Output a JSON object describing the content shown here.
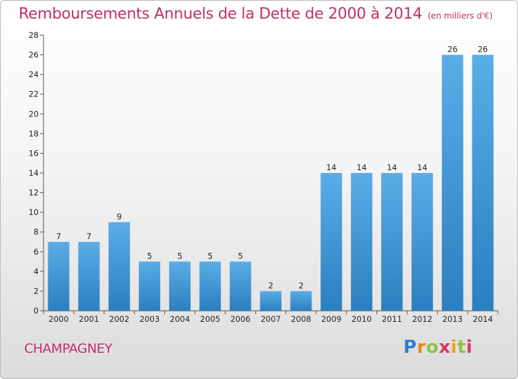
{
  "title": "Remboursements Annuels de la Dette de 2000 à 2014",
  "subtitle": "(en milliers d'€)",
  "commune": "CHAMPAGNEY",
  "logo": {
    "text": "Proxiti",
    "letters": [
      "P",
      "r",
      "o",
      "x",
      "i",
      "t",
      "i"
    ]
  },
  "colors": {
    "bar_top": "#5aade6",
    "bar_bottom": "#2a7fc0",
    "title": "#c0306a"
  },
  "chart_data": {
    "type": "bar",
    "title": "Remboursements Annuels de la Dette de 2000 à 2014",
    "subtitle": "(en milliers d'€)",
    "categories": [
      "2000",
      "2001",
      "2002",
      "2003",
      "2004",
      "2005",
      "2006",
      "2007",
      "2008",
      "2009",
      "2010",
      "2011",
      "2012",
      "2013",
      "2014"
    ],
    "values": [
      7,
      7,
      9,
      5,
      5,
      5,
      5,
      2,
      2,
      14,
      14,
      14,
      14,
      26,
      26
    ],
    "ylim": [
      0,
      28
    ],
    "yticks": [
      "0",
      "2",
      "4",
      "6",
      "8",
      "10",
      "12",
      "14",
      "16",
      "18",
      "20",
      "22",
      "24",
      "26",
      "28"
    ],
    "grid": false,
    "data_labels": true
  }
}
